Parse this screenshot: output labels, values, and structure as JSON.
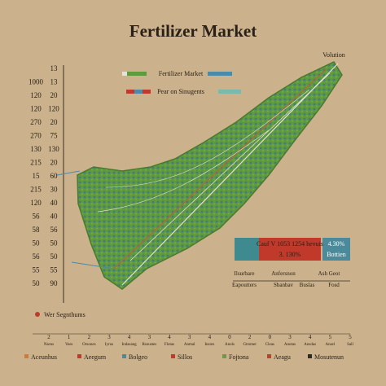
{
  "header": {
    "title": "Fertilizer Market",
    "corner": "Volution"
  },
  "left_axis": {
    "rows": [
      [
        "13"
      ],
      [
        "1000",
        "13"
      ],
      [
        "120",
        "20"
      ],
      [
        "120",
        "120"
      ],
      [
        "270",
        "20"
      ],
      [
        "270",
        "75"
      ],
      [
        "130",
        "130"
      ],
      [
        "215",
        "20"
      ],
      [
        "15",
        "60"
      ],
      [
        "215",
        "30"
      ],
      [
        "120",
        "40"
      ],
      [
        "56",
        "40"
      ],
      [
        "58",
        "56"
      ],
      [
        "50",
        "50"
      ],
      [
        "56",
        "50"
      ],
      [
        "55",
        "55"
      ],
      [
        "50",
        "90"
      ]
    ]
  },
  "top_legend": [
    "Fertilizer Market",
    "Pear on Sinugents"
  ],
  "info_box": {
    "left": "Cauf V 1053 1254 hevuis",
    "left_sub": "3. 130%",
    "right": "4.30%",
    "right_sub": "Bottien"
  },
  "info_labels": {
    "row1": [
      "Ilsurbare",
      "Anfersnon",
      "Ash Geot"
    ],
    "row2": [
      "Eapoutters",
      "Sbanbav",
      "Buslas",
      "Fosd"
    ]
  },
  "side_note": "Wer Segnthums",
  "bottom_axis": {
    "ticks": [
      "2",
      "1",
      "2",
      "3",
      "4",
      "3",
      "4",
      "3",
      "4",
      "0",
      "2",
      "0",
      "3",
      "4",
      "5",
      "5"
    ],
    "labels": [
      "Nsens",
      "Vees",
      "Orsones",
      "Iyrus",
      "Indasang",
      "Rsoustes",
      "Flotas",
      "Anmal",
      "Insres",
      "Anols",
      "Gtrsmer",
      "Cleas",
      "Anutas",
      "Ansdas",
      "Ansel",
      "Sall"
    ]
  },
  "legend": [
    {
      "name": "Aceunhus",
      "color": "#d07a3a"
    },
    {
      "name": "Aeegum",
      "color": "#c0392b"
    },
    {
      "name": "Bolgeo",
      "color": "#4a8a9a"
    },
    {
      "name": "Sillos",
      "color": "#c0392b"
    },
    {
      "name": "Fojtona",
      "color": "#6a9a4a"
    },
    {
      "name": "Aeagu",
      "color": "#b8442e"
    },
    {
      "name": "Mosutenun",
      "color": "#2a2a2a"
    }
  ]
}
